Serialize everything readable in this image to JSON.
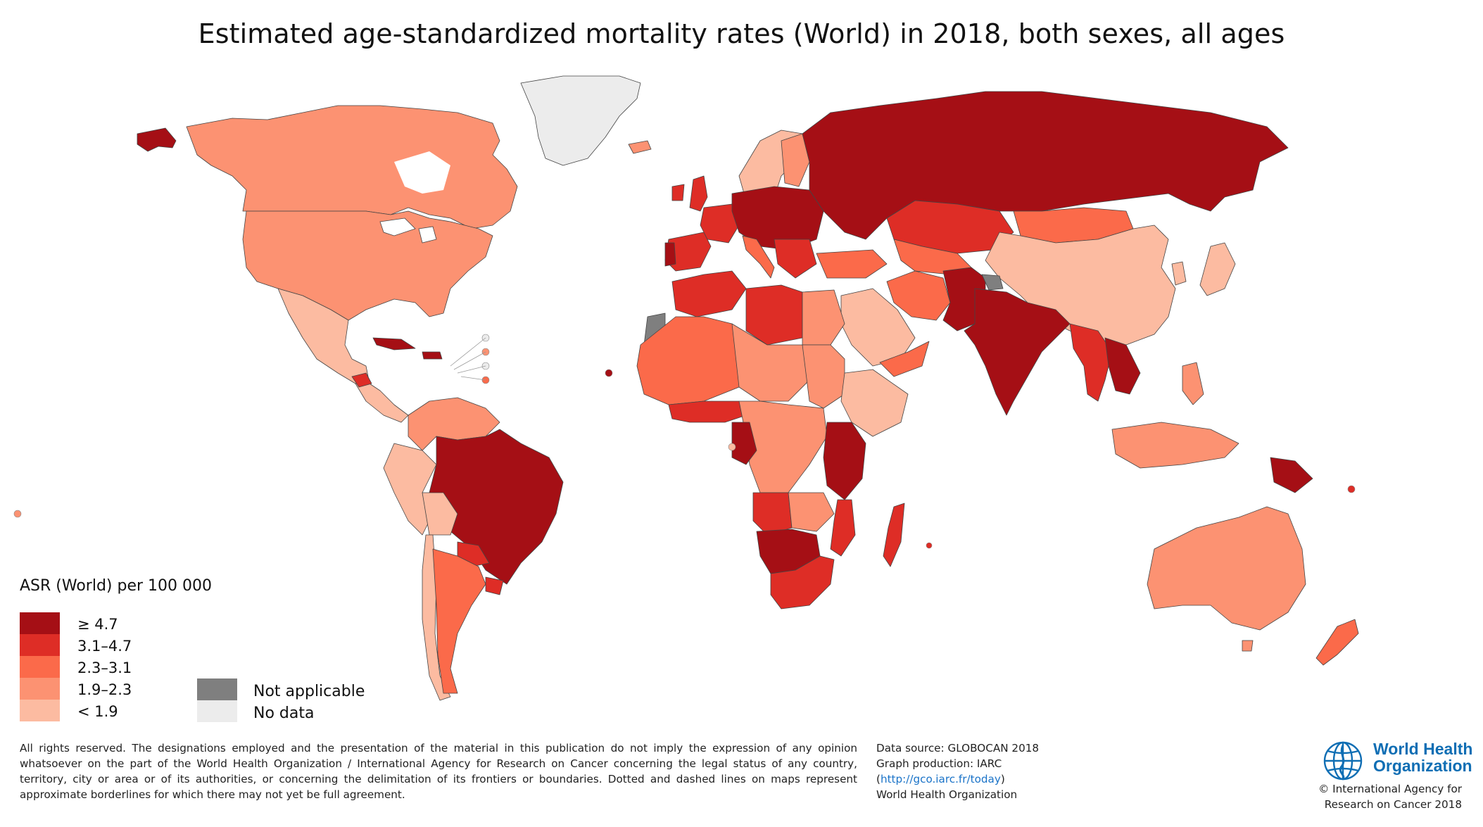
{
  "title": "Estimated age-standardized mortality rates (World) in 2018, both sexes, all ages",
  "legend": {
    "title": "ASR (World) per 100 000",
    "classes": [
      {
        "label": "≥ 4.7",
        "color": "#a50f15"
      },
      {
        "label": "3.1–4.7",
        "color": "#de2d26"
      },
      {
        "label": "2.3–3.1",
        "color": "#fb6a4a"
      },
      {
        "label": "1.9–2.3",
        "color": "#fc9272"
      },
      {
        "label": "< 1.9",
        "color": "#fcbba1"
      }
    ],
    "extra": [
      {
        "label": "Not applicable",
        "color": "#7f7f7f"
      },
      {
        "label": "No data",
        "color": "#ececec"
      }
    ]
  },
  "footer": {
    "disclaimer": "All rights reserved. The designations employed and the presentation of the material in this publication do not imply the expression of any opinion whatsoever on the part of the World Health Organization / International Agency for Research on Cancer concerning the legal status of any country, territory, city or area or of its authorities, or concerning the delimitation of its frontiers or boundaries. Dotted and dashed lines on maps represent approximate borderlines for which there may not yet be full agreement.",
    "data_source": "Data source: GLOBOCAN 2018",
    "graph_production": "Graph production: IARC",
    "url": "http://gco.iarc.fr/today",
    "org": "World Health Organization",
    "who_name_line1": "World Health",
    "who_name_line2": "Organization",
    "copyright_line1": "© International Agency for",
    "copyright_line2": "Research on Cancer 2018"
  }
}
